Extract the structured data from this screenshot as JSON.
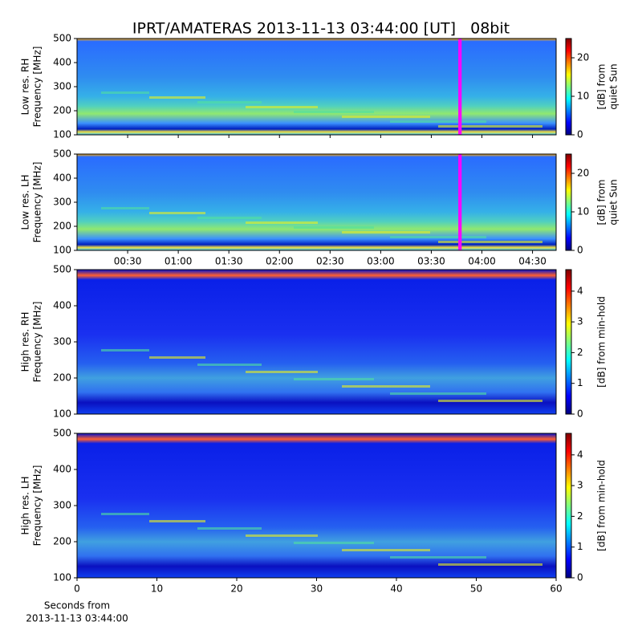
{
  "chart_data": [
    {
      "type": "heatmap",
      "title": "IPRT/AMATERAS 2013-11-13 03:44:00 [UT]   08bit",
      "ylabel": [
        "Low res. RH",
        "Frequency [MHz]"
      ],
      "ylim": [
        100,
        500
      ],
      "yticks": [
        100,
        200,
        300,
        400,
        500
      ],
      "xlim": [
        0,
        284
      ],
      "colormap": "jet",
      "colorbar_label": [
        "[dB] from",
        "quiet Sun"
      ],
      "colorbar_lim": [
        0,
        25
      ],
      "colorbar_ticks": [
        0,
        10,
        20
      ],
      "highlight": {
        "color": "#ff00ff",
        "x": [
          226,
          228
        ]
      }
    },
    {
      "type": "heatmap",
      "ylabel": [
        "Low res. LH",
        "Frequency [MHz]"
      ],
      "ylim": [
        100,
        500
      ],
      "yticks": [
        100,
        200,
        300,
        400,
        500
      ],
      "xlim": [
        0,
        284
      ],
      "xticks": [
        {
          "value": 30,
          "label": "00:30"
        },
        {
          "value": 60,
          "label": "01:00"
        },
        {
          "value": 90,
          "label": "01:30"
        },
        {
          "value": 120,
          "label": "02:00"
        },
        {
          "value": 150,
          "label": "02:30"
        },
        {
          "value": 180,
          "label": "03:00"
        },
        {
          "value": 210,
          "label": "03:30"
        },
        {
          "value": 240,
          "label": "04:00"
        },
        {
          "value": 270,
          "label": "04:30"
        }
      ],
      "colormap": "jet",
      "colorbar_label": [
        "[dB] from",
        "quiet Sun"
      ],
      "colorbar_lim": [
        0,
        25
      ],
      "colorbar_ticks": [
        0,
        10,
        20
      ],
      "highlight": {
        "color": "#ff00ff",
        "x": [
          226,
          228
        ]
      }
    },
    {
      "type": "heatmap",
      "ylabel": [
        "High res. RH",
        "Frequency [MHz]"
      ],
      "ylim": [
        100,
        500
      ],
      "yticks": [
        100,
        200,
        300,
        400,
        500
      ],
      "xlim": [
        0,
        60
      ],
      "colormap": "jet",
      "colorbar_label": [
        "[dB] from min-hold"
      ],
      "colorbar_lim": [
        0,
        4.7
      ],
      "colorbar_ticks": [
        0,
        1,
        2,
        3,
        4
      ]
    },
    {
      "type": "heatmap",
      "ylabel": [
        "High res. LH",
        "Frequency [MHz]"
      ],
      "ylim": [
        100,
        500
      ],
      "yticks": [
        100,
        200,
        300,
        400,
        500
      ],
      "xlim": [
        0,
        60
      ],
      "xticks": [
        0,
        10,
        20,
        30,
        40,
        50,
        60
      ],
      "xlabel": [
        "Seconds from",
        "2013-11-13 03:44:00"
      ],
      "colormap": "jet",
      "colorbar_label": [
        "[dB] from min-hold"
      ],
      "colorbar_lim": [
        0,
        4.7
      ],
      "colorbar_ticks": [
        0,
        1,
        2,
        3,
        4
      ]
    }
  ]
}
